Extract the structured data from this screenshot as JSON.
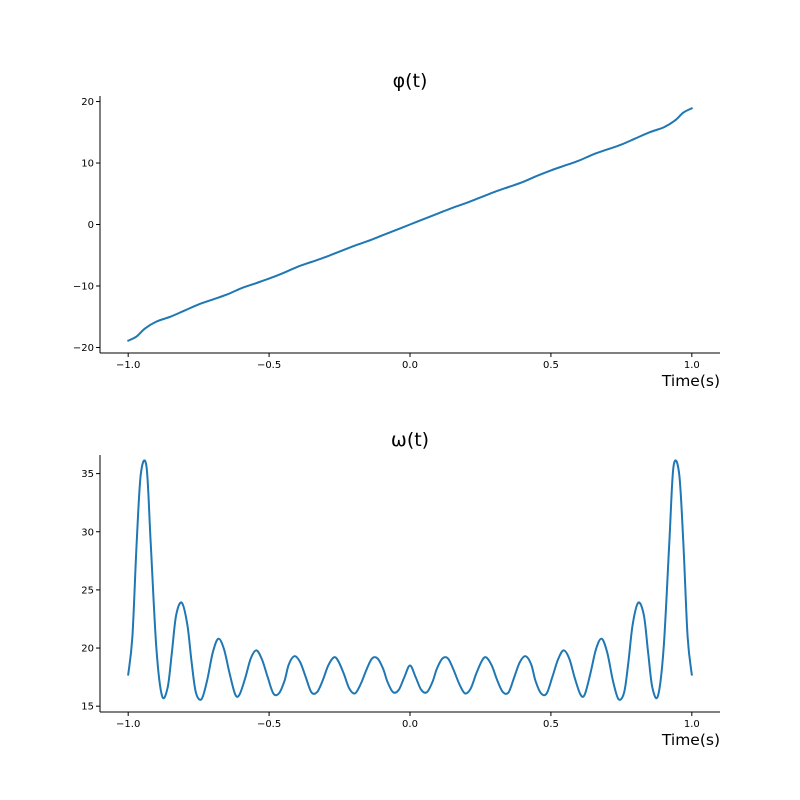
{
  "chart_data": [
    {
      "type": "line",
      "title": "φ(t)",
      "xlabel": "Time(s)",
      "ylabel": "",
      "xlim": [
        -1.1,
        1.1
      ],
      "ylim": [
        -20.9,
        20.9
      ],
      "xticks": [
        -1.0,
        -0.5,
        0.0,
        0.5,
        1.0
      ],
      "xtick_labels": [
        "−1.0",
        "−0.5",
        "0.0",
        "0.5",
        "1.0"
      ],
      "yticks": [
        -20,
        -10,
        0,
        10,
        20
      ],
      "ytick_labels": [
        "−20",
        "−10",
        "0",
        "10",
        "20"
      ],
      "grid": false,
      "color": "#1f77b4",
      "series": [
        {
          "x": [
            -1.0,
            -0.97,
            -0.94,
            -0.9,
            -0.85,
            -0.8,
            -0.75,
            -0.7,
            -0.65,
            -0.6,
            -0.55,
            -0.5,
            -0.45,
            -0.4,
            -0.35,
            -0.3,
            -0.25,
            -0.2,
            -0.15,
            -0.1,
            -0.05,
            0.0,
            0.05,
            0.1,
            0.15,
            0.2,
            0.25,
            0.3,
            0.35,
            0.4,
            0.45,
            0.5,
            0.55,
            0.6,
            0.65,
            0.7,
            0.75,
            0.8,
            0.85,
            0.9,
            0.94,
            0.97,
            1.0
          ],
          "y": [
            -18.9,
            -18.2,
            -16.9,
            -15.8,
            -15.0,
            -14.0,
            -13.0,
            -12.2,
            -11.4,
            -10.4,
            -9.6,
            -8.8,
            -7.9,
            -6.9,
            -6.1,
            -5.3,
            -4.4,
            -3.5,
            -2.7,
            -1.8,
            -0.9,
            0.0,
            0.9,
            1.8,
            2.7,
            3.5,
            4.4,
            5.3,
            6.1,
            6.9,
            7.9,
            8.8,
            9.6,
            10.4,
            11.4,
            12.2,
            13.0,
            14.0,
            15.0,
            15.8,
            16.9,
            18.2,
            18.9
          ]
        }
      ]
    },
    {
      "type": "line",
      "title": "ω(t)",
      "xlabel": "Time(s)",
      "ylabel": "",
      "xlim": [
        -1.1,
        1.1
      ],
      "ylim": [
        14.5,
        36.6
      ],
      "xticks": [
        -1.0,
        -0.5,
        0.0,
        0.5,
        1.0
      ],
      "xtick_labels": [
        "−1.0",
        "−0.5",
        "0.0",
        "0.5",
        "1.0"
      ],
      "yticks": [
        15,
        20,
        25,
        30,
        35
      ],
      "ytick_labels": [
        "15",
        "20",
        "25",
        "30",
        "35"
      ],
      "grid": false,
      "color": "#1f77b4",
      "series": [
        {
          "x": [
            -1.0,
            -0.985,
            -0.97,
            -0.955,
            -0.935,
            -0.92,
            -0.9,
            -0.88,
            -0.86,
            -0.845,
            -0.83,
            -0.81,
            -0.79,
            -0.775,
            -0.76,
            -0.74,
            -0.72,
            -0.7,
            -0.68,
            -0.66,
            -0.64,
            -0.62,
            -0.605,
            -0.585,
            -0.565,
            -0.545,
            -0.525,
            -0.505,
            -0.485,
            -0.465,
            -0.445,
            -0.43,
            -0.41,
            -0.39,
            -0.37,
            -0.35,
            -0.33,
            -0.31,
            -0.29,
            -0.27,
            -0.255,
            -0.235,
            -0.215,
            -0.195,
            -0.175,
            -0.155,
            -0.135,
            -0.115,
            -0.095,
            -0.08,
            -0.06,
            -0.04,
            -0.02,
            0.0,
            0.02,
            0.04,
            0.06,
            0.08,
            0.095,
            0.115,
            0.135,
            0.155,
            0.175,
            0.195,
            0.215,
            0.235,
            0.255,
            0.27,
            0.29,
            0.31,
            0.33,
            0.35,
            0.37,
            0.39,
            0.41,
            0.43,
            0.445,
            0.465,
            0.485,
            0.505,
            0.525,
            0.545,
            0.565,
            0.585,
            0.605,
            0.62,
            0.64,
            0.66,
            0.68,
            0.7,
            0.72,
            0.74,
            0.76,
            0.775,
            0.79,
            0.81,
            0.83,
            0.845,
            0.86,
            0.88,
            0.9,
            0.92,
            0.935,
            0.955,
            0.97,
            0.985,
            1.0
          ],
          "y": [
            17.7,
            21.0,
            29.0,
            35.0,
            35.6,
            29.0,
            20.0,
            15.9,
            16.6,
            19.6,
            22.8,
            23.9,
            22.0,
            18.8,
            16.2,
            15.6,
            17.2,
            19.6,
            20.8,
            19.9,
            17.8,
            16.0,
            16.0,
            17.4,
            19.1,
            19.8,
            19.0,
            17.5,
            16.1,
            16.1,
            17.2,
            18.6,
            19.3,
            18.8,
            17.5,
            16.2,
            16.2,
            17.2,
            18.5,
            19.2,
            18.9,
            17.8,
            16.5,
            16.1,
            16.9,
            18.1,
            19.1,
            19.1,
            18.2,
            17.1,
            16.2,
            16.4,
            17.5,
            18.5,
            17.5,
            16.4,
            16.2,
            17.1,
            18.2,
            19.1,
            19.1,
            18.1,
            16.9,
            16.1,
            16.5,
            17.8,
            18.9,
            19.2,
            18.5,
            17.2,
            16.2,
            16.2,
            17.5,
            18.8,
            19.3,
            18.6,
            17.2,
            16.1,
            16.1,
            17.5,
            19.0,
            19.8,
            19.1,
            17.4,
            16.0,
            16.0,
            17.8,
            19.9,
            20.8,
            19.6,
            17.2,
            15.6,
            16.2,
            18.8,
            22.0,
            23.9,
            22.8,
            19.6,
            16.6,
            15.9,
            20.0,
            29.0,
            35.6,
            35.0,
            29.0,
            21.0,
            17.7
          ]
        }
      ]
    }
  ]
}
